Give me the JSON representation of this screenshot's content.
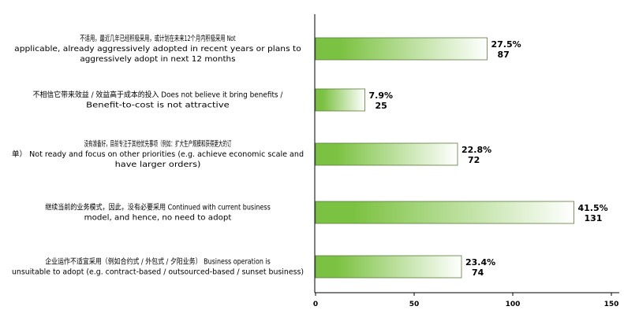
{
  "chart_data": {
    "type": "bar",
    "orientation": "horizontal",
    "categories": [
      [
        "不适用，最近几年已经积极采用，或计划在未来12个月内积极采用   Not",
        "applicable, already aggressively adopted in recent years or plans to",
        "aggressively adopt in next 12 months"
      ],
      [
        "不相信它带来效益 / 效益高于成本的投入   Does not believe it bring benefits /",
        "Benefit-to-cost is not attractive"
      ],
      [
        "没有准备好，目前专注于其他优先事项（例如：扩大生产规模和获得更大的订",
        "单）   Not ready and focus on other priorities (e.g. achieve economic scale and",
        "have larger orders)"
      ],
      [
        "继续当前的业务模式，因此，没有必要采用   Continued with current business",
        "model, and hence, no need to adopt"
      ],
      [
        "企业运作不适宜采用（例如合约式 / 外包式 / 夕阳业务）   Business operation is",
        "unsuitable to adopt (e.g. contract-based / outsourced-based / sunset business)"
      ]
    ],
    "values": [
      87,
      25,
      72,
      131,
      74
    ],
    "percent_labels": [
      "27.5%",
      "7.9%",
      "22.8%",
      "41.5%",
      "23.4%"
    ],
    "value_labels": [
      "87",
      "25",
      "72",
      "131",
      "74"
    ],
    "x_ticks": [
      0,
      50,
      100,
      150
    ],
    "x_tick_labels": [
      "0",
      "50",
      "100",
      "150"
    ],
    "xlim": [
      0,
      150
    ],
    "colors": {
      "bar_start": "#7cc242",
      "bar_end": "#ffffff",
      "bar_stroke": "#5a7a3a"
    }
  }
}
